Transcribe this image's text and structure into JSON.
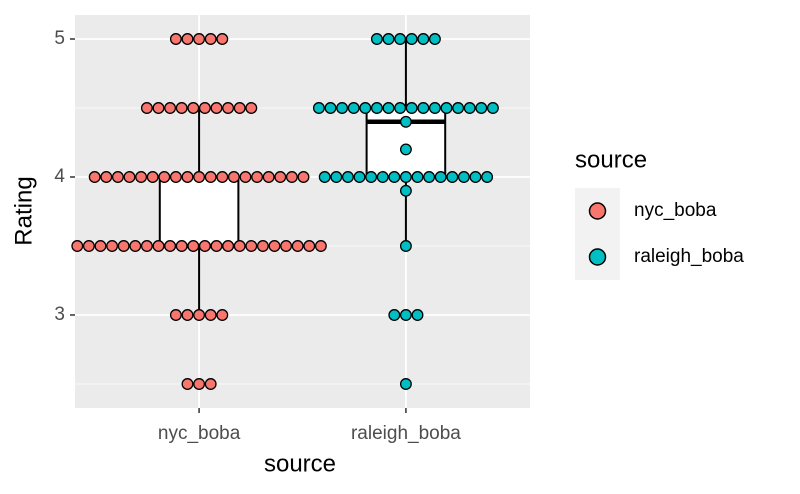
{
  "chart_data": {
    "type": "box_dot",
    "x_label": "source",
    "y_label": "Rating",
    "legend_title": "source",
    "categories": [
      "nyc_boba",
      "raleigh_boba"
    ],
    "ylim": [
      2.326,
      5.174
    ],
    "yticks": [
      3,
      4,
      5
    ],
    "minor_yticks": [
      2.5,
      3.5,
      4.5
    ],
    "grid": true,
    "legend_position": "right",
    "series": [
      {
        "name": "nyc_boba",
        "color": "#F8766D",
        "box": {
          "low": 3,
          "q1": 3.5,
          "median": 3.5,
          "q3": 4,
          "high": 4.5
        },
        "dots": {
          "values": [
            5,
            4.5,
            4,
            3.5,
            3,
            2.5
          ],
          "counts": [
            5,
            10,
            19,
            22,
            5,
            3
          ]
        }
      },
      {
        "name": "raleigh_boba",
        "color": "#00BFC4",
        "box": {
          "low": 3.5,
          "q1": 4,
          "median": 4.4,
          "q3": 4.5,
          "high": 5
        },
        "dots": {
          "values": [
            5,
            4.5,
            4.4,
            4.2,
            4,
            3.9,
            3.5,
            3,
            2.5
          ],
          "counts": [
            6,
            16,
            1,
            1,
            15,
            1,
            1,
            3,
            1
          ]
        }
      }
    ]
  }
}
